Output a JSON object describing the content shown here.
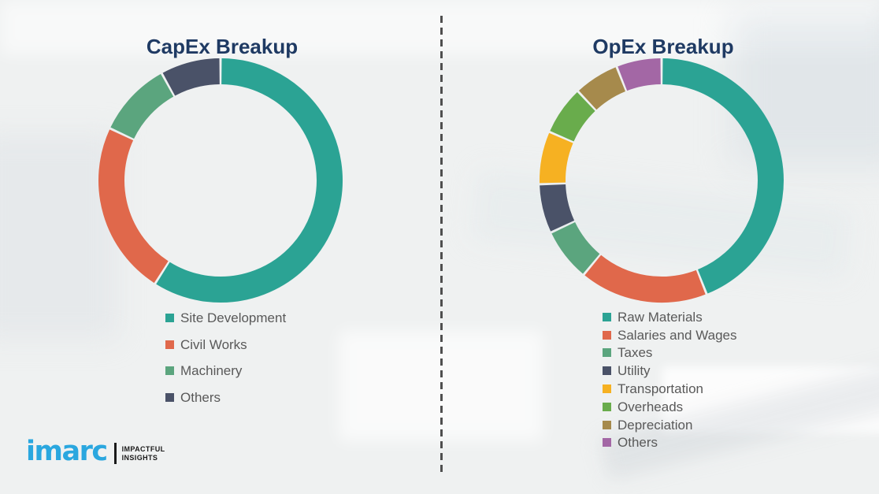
{
  "theme": {
    "title_color": "#1F3A63",
    "legend_text_color": "#595959",
    "background": "#EFF1F1",
    "divider_color": "#4F4F4F",
    "logo_blue": "#2AA7DF",
    "logo_black": "#1A1A1A"
  },
  "chart_data": [
    {
      "id": "capex",
      "type": "pie",
      "donut": true,
      "title": "CapEx Breakup",
      "labels": [
        "Site Development",
        "Civil Works",
        "Machinery",
        "Others"
      ],
      "values": [
        59,
        23,
        10,
        8
      ],
      "colors": [
        "#2BA394",
        "#E0684B",
        "#5BA57E",
        "#4A5268"
      ],
      "legend_position": "bottom",
      "data_labels": false
    },
    {
      "id": "opex",
      "type": "pie",
      "donut": true,
      "title": "OpEx Breakup",
      "labels": [
        "Raw Materials",
        "Salaries and Wages",
        "Taxes",
        "Utility",
        "Transportation",
        "Overheads",
        "Depreciation",
        "Others"
      ],
      "values": [
        44,
        17,
        7,
        6.5,
        7,
        6.5,
        6,
        6
      ],
      "colors": [
        "#2BA394",
        "#E0684B",
        "#5BA57E",
        "#4A5268",
        "#F6B122",
        "#69AC4C",
        "#A68A4C",
        "#A367A5"
      ],
      "legend_position": "bottom",
      "data_labels": false
    }
  ],
  "logo": {
    "brand": "imarc",
    "tagline_line1": "IMPACTFUL",
    "tagline_line2": "INSIGHTS"
  }
}
